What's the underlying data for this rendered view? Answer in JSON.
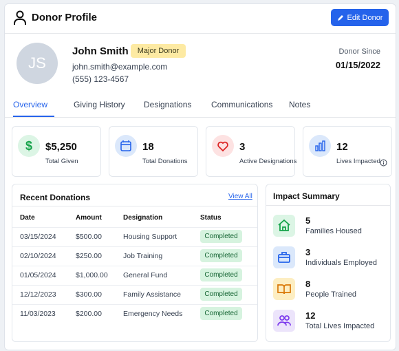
{
  "header": {
    "title": "Donor Profile",
    "edit_button": "Edit Donor"
  },
  "profile": {
    "initials": "JS",
    "name": "John Smith",
    "badge": "Major Donor",
    "email": "john.smith@example.com",
    "phone": "(555) 123-4567",
    "donor_since_label": "Donor Since",
    "donor_since": "01/15/2022"
  },
  "tabs": [
    "Overview",
    "Giving History",
    "Designations",
    "Communications",
    "Notes"
  ],
  "stats": [
    {
      "value": "$5,250",
      "label": "Total Given"
    },
    {
      "value": "18",
      "label": "Total Donations"
    },
    {
      "value": "3",
      "label": "Active Designations"
    },
    {
      "value": "12",
      "label": "Lives Impacted"
    }
  ],
  "recent_donations": {
    "title": "Recent Donations",
    "view_all": "View All",
    "columns": [
      "Date",
      "Amount",
      "Designation",
      "Status"
    ],
    "rows": [
      [
        "03/15/2024",
        "$500.00",
        "Housing Support",
        "Completed"
      ],
      [
        "02/10/2024",
        "$250.00",
        "Job Training",
        "Completed"
      ],
      [
        "01/05/2024",
        "$1,000.00",
        "General Fund",
        "Completed"
      ],
      [
        "12/12/2023",
        "$300.00",
        "Family Assistance",
        "Completed"
      ],
      [
        "11/03/2023",
        "$200.00",
        "Emergency Needs",
        "Completed"
      ]
    ]
  },
  "impact_summary": {
    "title": "Impact Summary",
    "items": [
      {
        "value": "5",
        "label": "Families Housed"
      },
      {
        "value": "3",
        "label": "Individuals Employed"
      },
      {
        "value": "8",
        "label": "People Trained"
      },
      {
        "value": "12",
        "label": "Total Lives Impacted"
      }
    ]
  }
}
